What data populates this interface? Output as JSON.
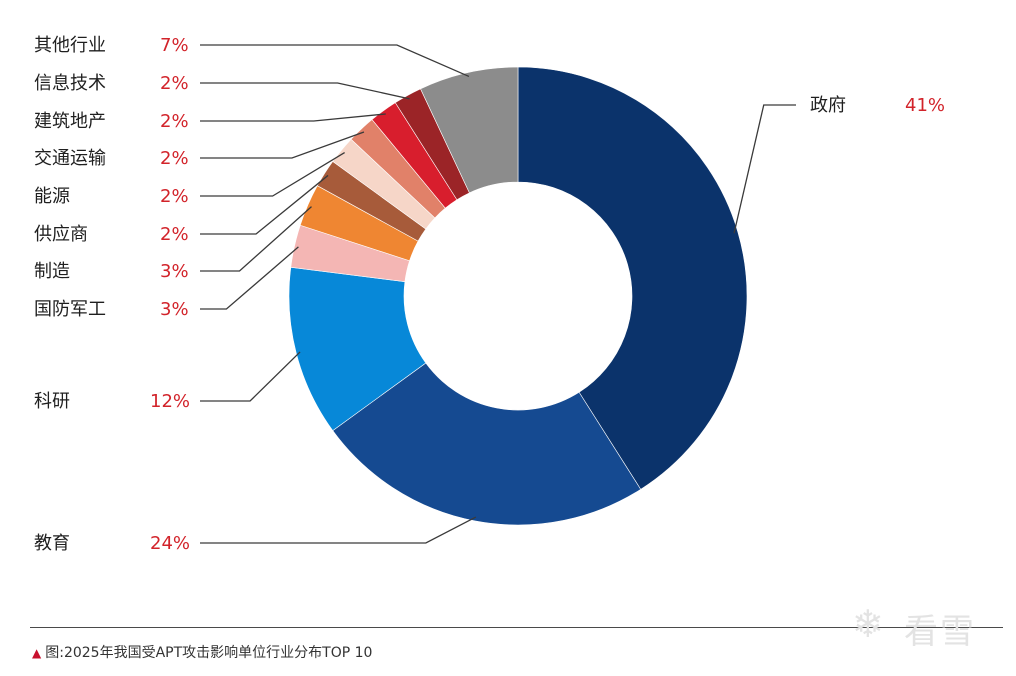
{
  "chart_data": {
    "type": "pie",
    "donut": true,
    "title": "",
    "start": "top, clockwise",
    "slices": [
      {
        "label": "政府",
        "value": 41,
        "value_label": "41%",
        "color": "#0b336b"
      },
      {
        "label": "教育",
        "value": 24,
        "value_label": "24%",
        "color": "#154a91"
      },
      {
        "label": "科研",
        "value": 12,
        "value_label": "12%",
        "color": "#0788d8"
      },
      {
        "label": "国防军工",
        "value": 3,
        "value_label": "3%",
        "color": "#f4b6b4"
      },
      {
        "label": "制造",
        "value": 3,
        "value_label": "3%",
        "color": "#ef8632"
      },
      {
        "label": "供应商",
        "value": 2,
        "value_label": "2%",
        "color": "#a75b3a"
      },
      {
        "label": "能源",
        "value": 2,
        "value_label": "2%",
        "color": "#f6d6c8"
      },
      {
        "label": "交通运输",
        "value": 2,
        "value_label": "2%",
        "color": "#e18169"
      },
      {
        "label": "建筑地产",
        "value": 2,
        "value_label": "2%",
        "color": "#d81e2d"
      },
      {
        "label": "信息技术",
        "value": 2,
        "value_label": "2%",
        "color": "#9b2427"
      },
      {
        "label": "其他行业",
        "value": 7,
        "value_label": "7%",
        "color": "#8c8c8c"
      }
    ]
  },
  "caption": {
    "marker": "▲",
    "text": "图:2025年我国受APT攻击影响单位行业分布TOP 10"
  },
  "watermark": {
    "icon": "snowflake-icon",
    "text": "看雪"
  }
}
